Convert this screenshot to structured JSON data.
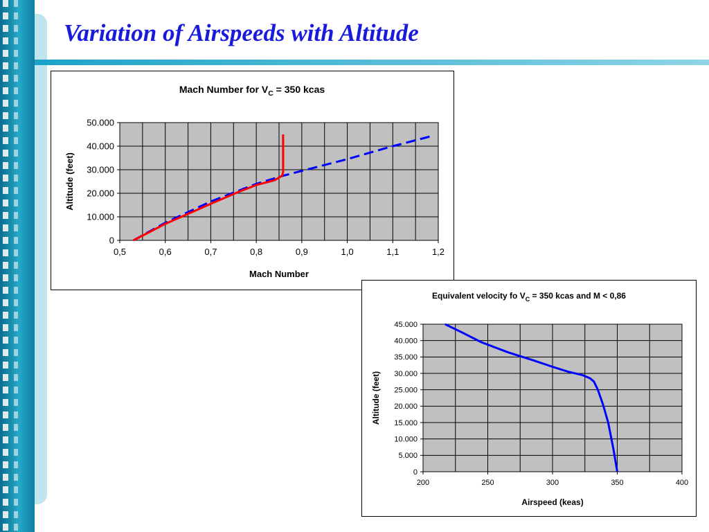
{
  "slide": {
    "title": "Variation of Airspeeds with Altitude",
    "colors": {
      "title": "#1a1adc",
      "accent": "#1aa3c8",
      "plot_background": "#c0c0c0"
    }
  },
  "chart_data": [
    {
      "type": "line",
      "title": "Mach Number for V",
      "title_subscript": "C",
      "title_suffix": " = 350 kcas",
      "xlabel": "Mach Number",
      "ylabel": "Altitude (feet)",
      "xlim": [
        0.5,
        1.2
      ],
      "ylim": [
        0,
        50000
      ],
      "x_ticks": [
        "0,5",
        "0,6",
        "0,7",
        "0,8",
        "0,9",
        "1,0",
        "1,1",
        "1,2"
      ],
      "y_ticks": [
        "0",
        "10.000",
        "20.000",
        "30.000",
        "40.000",
        "50.000"
      ],
      "grid": true,
      "series": [
        {
          "color": "#0000ff",
          "style": "dashed",
          "x": [
            0.53,
            0.6,
            0.7,
            0.8,
            0.86,
            0.9,
            1.0,
            1.1,
            1.19
          ],
          "y": [
            0,
            7500,
            16500,
            24000,
            27500,
            29500,
            34500,
            40000,
            44500
          ]
        },
        {
          "color": "#ff0000",
          "style": "solid",
          "x": [
            0.53,
            0.6,
            0.7,
            0.76,
            0.8,
            0.84,
            0.857,
            0.859,
            0.859
          ],
          "y": [
            0,
            7000,
            15500,
            20500,
            23500,
            25500,
            27500,
            29000,
            45000
          ]
        }
      ]
    },
    {
      "type": "line",
      "title": "Equivalent velocity fo V",
      "title_subscript": "C",
      "title_suffix": " = 350 kcas and M < 0,86",
      "xlabel": "Airspeed (keas)",
      "ylabel": "Altitude (feet)",
      "xlim": [
        200,
        400
      ],
      "ylim": [
        0,
        45000
      ],
      "x_ticks": [
        "200",
        "250",
        "300",
        "350",
        "400"
      ],
      "y_ticks": [
        "0",
        "5.000",
        "10.000",
        "15.000",
        "20.000",
        "25.000",
        "30.000",
        "35.000",
        "40.000",
        "45.000"
      ],
      "grid": true,
      "series": [
        {
          "color": "#0000ff",
          "style": "solid",
          "x": [
            350,
            347,
            343,
            339,
            335,
            332,
            329,
            323,
            312,
            300,
            285,
            265,
            245,
            230,
            217
          ],
          "y": [
            0,
            7000,
            15000,
            20500,
            25000,
            27500,
            28500,
            29500,
            30500,
            32000,
            34000,
            36500,
            39500,
            42500,
            45000
          ]
        }
      ]
    }
  ]
}
